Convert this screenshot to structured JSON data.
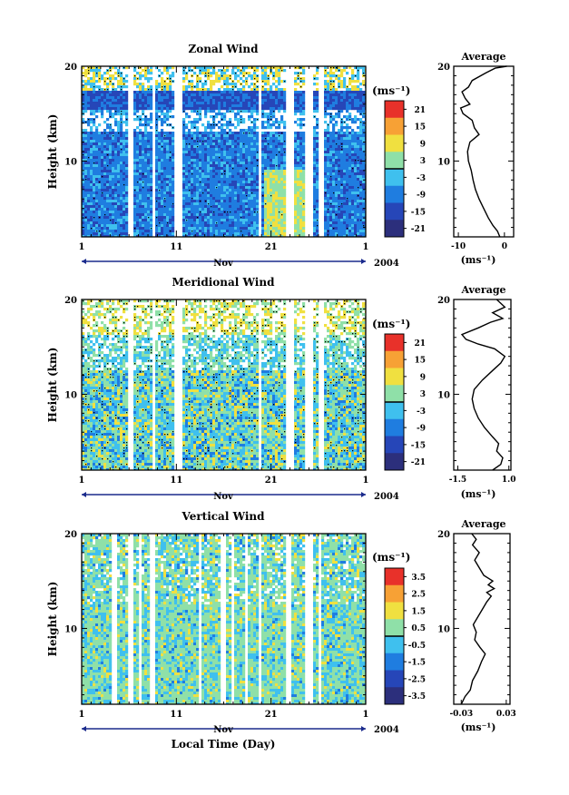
{
  "figure": {
    "xlabel_bottom": "Local Time (Day)",
    "month_label": "Nov",
    "year_label": "2004",
    "average_title": "Average",
    "height_label": "Height (km)",
    "unit_label": "(ms⁻¹)"
  },
  "chart_data": [
    {
      "type": "heatmap",
      "title": "Zonal Wind",
      "ylabel": "Height (km)",
      "ylim": [
        2,
        20
      ],
      "yticks": [
        10,
        20
      ],
      "xlim": [
        1,
        31
      ],
      "xticks": [
        "1",
        "11",
        "21",
        "1"
      ],
      "xlabel": "Nov",
      "xlabel_right": "2004",
      "colorbar": {
        "unit": "(ms⁻¹)",
        "ticks": [
          "21",
          "15",
          "9",
          "3",
          "-3",
          "-9",
          "-15",
          "-21"
        ],
        "range": [
          -24,
          24
        ]
      },
      "gaps_days": [
        [
          5.7,
          6.3
        ],
        [
          8.2,
          8.7
        ],
        [
          10.6,
          11.4
        ],
        [
          19.5,
          19.9
        ],
        [
          22.3,
          23.2
        ],
        [
          24.3,
          25.3
        ],
        [
          26.0,
          26.4
        ]
      ],
      "average_profile": {
        "title": "Average",
        "xlabel": "(ms⁻¹)",
        "xlim": [
          -11,
          2
        ],
        "xticks": [
          "-10",
          "0"
        ],
        "xtick_values": [
          -10,
          0
        ],
        "yticks": [
          10,
          20
        ],
        "points": [
          [
            -1.0,
            2.0
          ],
          [
            -1.5,
            2.6
          ],
          [
            -2.5,
            3.2
          ],
          [
            -3.5,
            4.0
          ],
          [
            -4.5,
            5.0
          ],
          [
            -5.5,
            6.0
          ],
          [
            -6.3,
            7.0
          ],
          [
            -6.8,
            8.0
          ],
          [
            -7.2,
            9.0
          ],
          [
            -7.8,
            10.0
          ],
          [
            -8.0,
            11.0
          ],
          [
            -7.5,
            12.0
          ],
          [
            -5.5,
            12.8
          ],
          [
            -6.5,
            13.5
          ],
          [
            -7.0,
            14.3
          ],
          [
            -9.0,
            15.0
          ],
          [
            -9.5,
            15.6
          ],
          [
            -7.5,
            16.0
          ],
          [
            -8.5,
            16.6
          ],
          [
            -9.2,
            17.3
          ],
          [
            -7.8,
            17.8
          ],
          [
            -7.0,
            18.5
          ],
          [
            -4.0,
            19.3
          ],
          [
            -2.0,
            19.8
          ],
          [
            0.5,
            20.0
          ]
        ]
      }
    },
    {
      "type": "heatmap",
      "title": "Meridional Wind",
      "ylabel": "Height (km)",
      "ylim": [
        2,
        20
      ],
      "yticks": [
        10,
        20
      ],
      "xlim": [
        1,
        31
      ],
      "xticks": [
        "1",
        "11",
        "21",
        "1"
      ],
      "xlabel": "Nov",
      "xlabel_right": "2004",
      "colorbar": {
        "unit": "(ms⁻¹)",
        "ticks": [
          "21",
          "15",
          "9",
          "3",
          "-3",
          "-9",
          "-15",
          "-21"
        ],
        "range": [
          -24,
          24
        ]
      },
      "gaps_days": [
        [
          5.7,
          6.3
        ],
        [
          8.2,
          8.7
        ],
        [
          10.6,
          11.4
        ],
        [
          19.5,
          19.9
        ],
        [
          22.3,
          23.2
        ],
        [
          24.3,
          25.3
        ],
        [
          26.0,
          26.4
        ]
      ],
      "average_profile": {
        "title": "Average",
        "xlabel": "(ms⁻¹)",
        "xlim": [
          -1.7,
          1.1
        ],
        "xticks": [
          "-1.5",
          "1.0"
        ],
        "xtick_values": [
          -1.5,
          1.0
        ],
        "yticks": [
          10,
          20
        ],
        "points": [
          [
            0.2,
            2.0
          ],
          [
            0.6,
            2.6
          ],
          [
            0.7,
            3.3
          ],
          [
            0.4,
            4.0
          ],
          [
            0.5,
            4.8
          ],
          [
            0.2,
            5.5
          ],
          [
            -0.2,
            6.5
          ],
          [
            -0.5,
            7.5
          ],
          [
            -0.7,
            8.5
          ],
          [
            -0.8,
            9.5
          ],
          [
            -0.7,
            10.5
          ],
          [
            -0.3,
            11.5
          ],
          [
            0.2,
            12.5
          ],
          [
            0.6,
            13.3
          ],
          [
            0.8,
            14.0
          ],
          [
            0.3,
            14.8
          ],
          [
            -0.5,
            15.3
          ],
          [
            -1.1,
            15.8
          ],
          [
            -1.3,
            16.3
          ],
          [
            -0.5,
            17.0
          ],
          [
            0.1,
            17.6
          ],
          [
            0.7,
            18.0
          ],
          [
            0.2,
            18.6
          ],
          [
            0.8,
            19.2
          ],
          [
            0.4,
            20.0
          ]
        ]
      }
    },
    {
      "type": "heatmap",
      "title": "Vertical Wind",
      "ylabel": "Height (km)",
      "ylim": [
        2,
        20
      ],
      "yticks": [
        10,
        20
      ],
      "xlim": [
        1,
        31
      ],
      "xticks": [
        "1",
        "11",
        "21",
        "1"
      ],
      "xlabel": "Nov",
      "xlabel_right": "2004",
      "bottom_label": "Local Time (Day)",
      "colorbar": {
        "unit": "(ms⁻¹)",
        "ticks": [
          "3.5",
          "2.5",
          "1.5",
          "0.5",
          "-0.5",
          "-1.5",
          "-2.5",
          "-3.5"
        ],
        "range": [
          -4,
          4
        ]
      },
      "gaps_days": [
        [
          4.1,
          4.7
        ],
        [
          5.7,
          6.2
        ],
        [
          7.0,
          7.3
        ],
        [
          8.1,
          8.6
        ],
        [
          13.2,
          13.5
        ],
        [
          15.6,
          16.0
        ],
        [
          16.7,
          16.9
        ],
        [
          18.0,
          18.3
        ],
        [
          19.6,
          19.9
        ],
        [
          22.4,
          23.1
        ],
        [
          24.4,
          25.3
        ],
        [
          25.9,
          26.3
        ]
      ],
      "average_profile": {
        "title": "Average",
        "xlabel": "(ms⁻¹)",
        "xlim": [
          -0.04,
          0.035
        ],
        "xticks": [
          "-0.03",
          "0.03"
        ],
        "xtick_values": [
          -0.03,
          0.03
        ],
        "yticks": [
          10,
          20
        ],
        "points": [
          [
            -0.03,
            2.0
          ],
          [
            -0.025,
            2.8
          ],
          [
            -0.018,
            3.5
          ],
          [
            -0.015,
            4.5
          ],
          [
            -0.008,
            5.5
          ],
          [
            -0.003,
            6.5
          ],
          [
            0.002,
            7.3
          ],
          [
            -0.005,
            8.0
          ],
          [
            -0.012,
            8.8
          ],
          [
            -0.01,
            9.6
          ],
          [
            -0.014,
            10.4
          ],
          [
            -0.008,
            11.2
          ],
          [
            -0.002,
            12.0
          ],
          [
            0.004,
            12.8
          ],
          [
            0.01,
            13.4
          ],
          [
            0.004,
            13.8
          ],
          [
            0.014,
            14.2
          ],
          [
            0.006,
            14.6
          ],
          [
            0.012,
            15.0
          ],
          [
            0.0,
            15.6
          ],
          [
            -0.006,
            16.4
          ],
          [
            -0.012,
            17.2
          ],
          [
            -0.006,
            18.0
          ],
          [
            -0.015,
            18.8
          ],
          [
            -0.01,
            19.4
          ],
          [
            -0.016,
            20.0
          ]
        ]
      }
    }
  ]
}
